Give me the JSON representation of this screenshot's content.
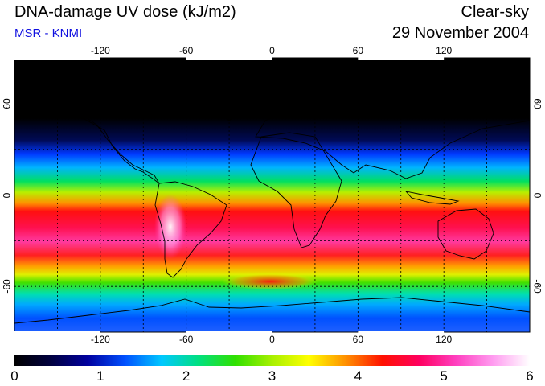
{
  "header": {
    "title": "DNA-damage UV dose (kJ/m2)",
    "subtitle": "MSR - KNMI",
    "condition": "Clear-sky",
    "date": "29 November 2004"
  },
  "map": {
    "lon_ticks": [
      "-120",
      "-60",
      "0",
      "60",
      "120"
    ],
    "lat_ticks_left": [
      "60",
      "0",
      "-60"
    ],
    "lat_ticks_right": [
      "60",
      "0",
      "-60"
    ],
    "lon_tick_values": [
      -120,
      -60,
      0,
      60,
      120
    ],
    "lat_tick_values": [
      60,
      0,
      -60
    ],
    "lon_range": [
      -180,
      180
    ],
    "lat_range": [
      -90,
      90
    ],
    "grid_lon": [
      -150,
      -120,
      -90,
      -60,
      -30,
      0,
      30,
      60,
      90,
      120,
      150
    ],
    "grid_lat": [
      60,
      30,
      0,
      -30,
      -60
    ],
    "grid_style": "dotted"
  },
  "colorbar": {
    "labels": [
      "0",
      "1",
      "2",
      "3",
      "4",
      "5",
      "6"
    ],
    "min": 0,
    "max": 6,
    "colors": [
      "#000000",
      "#000040",
      "#0000a0",
      "#0050ff",
      "#00c8ff",
      "#00e080",
      "#30e000",
      "#a8f000",
      "#ffff00",
      "#ff9000",
      "#ff1000",
      "#ff0060",
      "#ff40c0",
      "#ff9cf0",
      "#ffffff"
    ]
  }
}
